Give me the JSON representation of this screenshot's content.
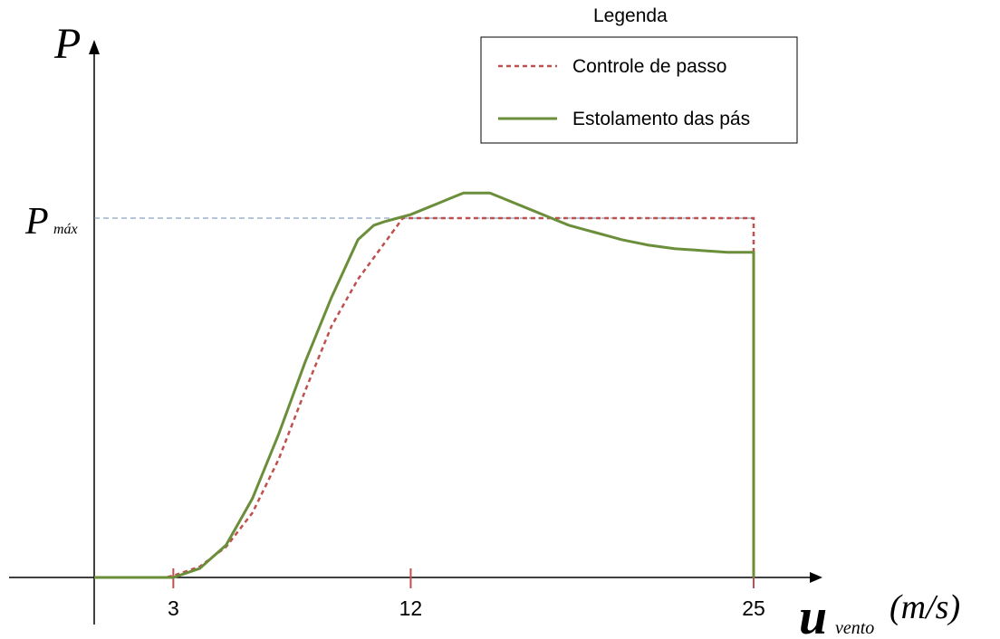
{
  "colors": {
    "pitch": "#c0504d",
    "stall": "#6b8e3a",
    "pmax_line": "#6f8fb6",
    "axis": "#000000"
  },
  "chart_data": {
    "type": "line",
    "y_axis": {
      "symbol": "P",
      "unit": ""
    },
    "x_axis": {
      "symbol": "u",
      "subscript": "vento",
      "unit": "(m/s)"
    },
    "xlim": [
      0,
      27
    ],
    "ylim": [
      0,
      1.2
    ],
    "x_ticks": [
      3,
      12,
      25
    ],
    "x_tick_labels": [
      "3",
      "12",
      "25"
    ],
    "pmax": {
      "symbol": "P",
      "subscript": "máx",
      "value": 1.0
    },
    "legend": {
      "title": "Legenda",
      "position": "top-right"
    },
    "series": [
      {
        "name": "Controle de passo",
        "style": "dashed",
        "points": [
          [
            0,
            0
          ],
          [
            2.7,
            0
          ],
          [
            3.0,
            0.005
          ],
          [
            4.0,
            0.03
          ],
          [
            5.0,
            0.085
          ],
          [
            6.0,
            0.18
          ],
          [
            7.0,
            0.33
          ],
          [
            8.0,
            0.52
          ],
          [
            9.0,
            0.7
          ],
          [
            10.0,
            0.83
          ],
          [
            11.0,
            0.93
          ],
          [
            11.7,
            1.0
          ],
          [
            25.0,
            1.0
          ],
          [
            25.0,
            0
          ]
        ]
      },
      {
        "name": "Estolamento das pás",
        "style": "solid",
        "points": [
          [
            0,
            0
          ],
          [
            3.0,
            0
          ],
          [
            4.0,
            0.025
          ],
          [
            5.0,
            0.09
          ],
          [
            6.0,
            0.22
          ],
          [
            7.0,
            0.4
          ],
          [
            8.0,
            0.6
          ],
          [
            9.0,
            0.78
          ],
          [
            10.0,
            0.94
          ],
          [
            10.6,
            0.98
          ],
          [
            11.0,
            0.99
          ],
          [
            12.0,
            1.01
          ],
          [
            13.0,
            1.04
          ],
          [
            14.0,
            1.07
          ],
          [
            15.0,
            1.07
          ],
          [
            16.0,
            1.04
          ],
          [
            17.0,
            1.01
          ],
          [
            18.0,
            0.98
          ],
          [
            19.0,
            0.96
          ],
          [
            20.0,
            0.94
          ],
          [
            21.0,
            0.925
          ],
          [
            22.0,
            0.915
          ],
          [
            23.0,
            0.91
          ],
          [
            24.0,
            0.905
          ],
          [
            25.0,
            0.905
          ],
          [
            25.0,
            0
          ]
        ]
      }
    ]
  }
}
